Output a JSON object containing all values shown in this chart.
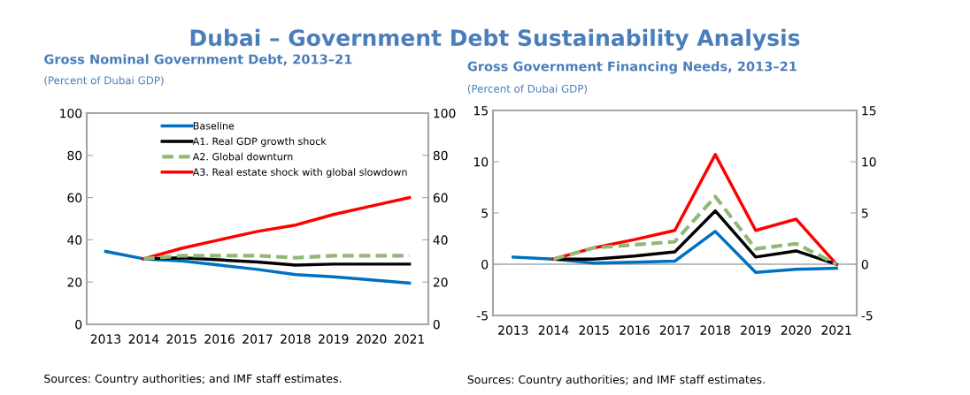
{
  "chart_data": [
    {
      "type": "line",
      "title": "Gross Nominal Government Debt, 2013–21",
      "subtitle": "(Percent of Dubai GDP)",
      "annotations": [
        "Dubai – Government Debt Sustainability Analysis",
        "Sources: Country authorities; and IMF staff estimates."
      ],
      "categories": [
        "2013",
        "2014",
        "2015",
        "2016",
        "2017",
        "2018",
        "2019",
        "2020",
        "2021"
      ],
      "series": [
        {
          "name": "Baseline",
          "color": "#0070c0",
          "line_style": "solid",
          "values": [
            34.5,
            31,
            30,
            28,
            26,
            23.5,
            22.5,
            21,
            19.5
          ]
        },
        {
          "name": "A1. Real GDP growth shock",
          "color": "#000000",
          "line_style": "solid",
          "values": [
            null,
            31,
            31.5,
            30.5,
            29.5,
            28,
            28.5,
            28.5,
            28.5
          ]
        },
        {
          "name": "A2. Global downturn",
          "color": "#93b777",
          "line_style": "dashed",
          "values": [
            null,
            31,
            32.5,
            32.5,
            32.5,
            31.5,
            32.5,
            32.5,
            32.5
          ]
        },
        {
          "name": "A3. Real estate shock with global slowdown",
          "color": "#ff0000",
          "line_style": "solid",
          "values": [
            null,
            31,
            36,
            40,
            44,
            47,
            52,
            56,
            60
          ]
        }
      ],
      "ylim": [
        0,
        100
      ],
      "yticks": [
        0,
        20,
        40,
        60,
        80,
        100
      ],
      "y2lim": [
        0,
        100
      ],
      "y2ticks": [
        0,
        20,
        40,
        60,
        80,
        100
      ],
      "grid": false,
      "legend": "top",
      "marker": "none"
    },
    {
      "type": "line",
      "title": "Gross Government Financing Needs, 2013–21",
      "subtitle": "(Percent of Dubai GDP)",
      "annotations": [
        "Sources: Country authorities; and IMF staff estimates."
      ],
      "categories": [
        "2013",
        "2014",
        "2015",
        "2016",
        "2017",
        "2018",
        "2019",
        "2020",
        "2021"
      ],
      "series": [
        {
          "color": "#0070c0",
          "line_style": "solid",
          "values": [
            0.7,
            0.5,
            0.1,
            0.2,
            0.3,
            3.2,
            -0.8,
            -0.5,
            -0.4
          ]
        },
        {
          "color": "#000000",
          "line_style": "solid",
          "values": [
            null,
            0.5,
            0.5,
            0.8,
            1.2,
            5.2,
            0.7,
            1.3,
            0
          ]
        },
        {
          "color": "#93b777",
          "line_style": "dashed",
          "values": [
            null,
            0.5,
            1.6,
            1.9,
            2.2,
            6.6,
            1.5,
            2.0,
            0
          ]
        },
        {
          "color": "#ff0000",
          "line_style": "solid",
          "values": [
            null,
            0.5,
            1.6,
            2.4,
            3.3,
            10.7,
            3.3,
            4.4,
            0
          ]
        }
      ],
      "ylim": [
        -5,
        15
      ],
      "yticks": [
        -5,
        0,
        5,
        10,
        15
      ],
      "y2lim": [
        -5,
        15
      ],
      "y2ticks": [
        -5,
        0,
        5,
        10,
        15
      ],
      "ref_lines": [
        {
          "axis": "y",
          "value": 0,
          "color": "#a6a6a6"
        }
      ],
      "grid": false,
      "legend": false,
      "marker": "none"
    }
  ]
}
